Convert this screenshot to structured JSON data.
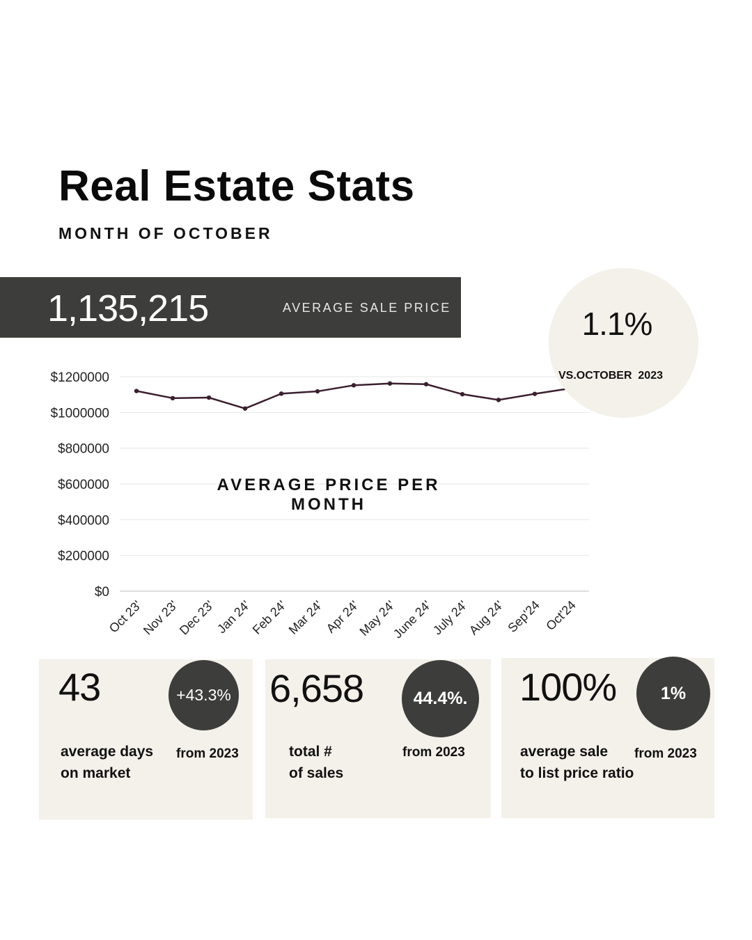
{
  "header": {
    "title": "Real Estate Stats",
    "subtitle": "MONTH OF OCTOBER"
  },
  "average_sale_price": {
    "value": "1,135,215",
    "label": "AVERAGE SALE PRICE"
  },
  "comparison": {
    "percent": "1.1%",
    "label": "VS.OCTOBER  2023"
  },
  "chart_data": {
    "type": "line",
    "title": "AVERAGE PRICE PER MONTH",
    "categories": [
      "Oct 23'",
      "Nov 23'",
      "Dec 23'",
      "Jan 24'",
      "Feb 24'",
      "Mar 24'",
      "Apr 24'",
      "May 24'",
      "June 24'",
      "July 24'",
      "Aug 24'",
      "Sep'24",
      "Oct'24"
    ],
    "series": [
      {
        "values": [
          1120000,
          1080000,
          1083000,
          1022000,
          1105000,
          1118000,
          1152000,
          1162000,
          1158000,
          1102000,
          1070000,
          1104000,
          1135215
        ]
      }
    ],
    "y_ticks": [
      "$0",
      "$200000",
      "$400000",
      "$600000",
      "$800000",
      "$1000000",
      "$1200000"
    ],
    "ylim": [
      0,
      1200000
    ],
    "grid": true,
    "line_color": "#3a1f2e"
  },
  "cards": [
    {
      "number": "43",
      "badge": "+43.3%",
      "label_line1": "average days",
      "label_line2": "on market",
      "from": "from 2023"
    },
    {
      "number": "6,658",
      "badge": "44.4%.",
      "label_line1": "total #",
      "label_line2": "of sales",
      "from": "from 2023"
    },
    {
      "number": "100%",
      "badge": "1%",
      "label_line1": "average sale",
      "label_line2": "to list price ratio",
      "from": "from 2023"
    }
  ],
  "colors": {
    "dark": "#3d3d3b",
    "cream": "#f4f0ea",
    "line": "#3a1f2e"
  }
}
